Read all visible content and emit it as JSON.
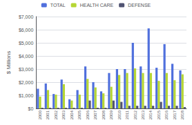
{
  "chart_data": {
    "type": "bar",
    "ylabel": "$ Millions",
    "categories": [
      "2000",
      "2001",
      "2002",
      "2003",
      "2004",
      "2005",
      "2006",
      "2007",
      "2008",
      "2009",
      "2010",
      "2011",
      "2012",
      "2013",
      "2014",
      "2015",
      "2016",
      "2017",
      "2018"
    ],
    "series": [
      {
        "name": "TOTAL",
        "values": [
          1500,
          1900,
          1100,
          2200,
          700,
          1400,
          3200,
          2000,
          1300,
          2700,
          3000,
          3000,
          5000,
          3200,
          6100,
          3100,
          4900,
          3400,
          2900
        ]
      },
      {
        "name": "HEALTH CARE",
        "values": [
          900,
          1400,
          1050,
          1850,
          600,
          1050,
          2250,
          1600,
          1150,
          1650,
          2550,
          2700,
          3050,
          2700,
          2700,
          2100,
          2700,
          2150,
          2600
        ]
      },
      {
        "name": "DEFENSE",
        "values": [
          50,
          50,
          50,
          50,
          50,
          50,
          600,
          50,
          50,
          600,
          500,
          200,
          200,
          200,
          200,
          500,
          200,
          200,
          100
        ]
      }
    ],
    "ylim": [
      0,
      7000
    ],
    "yticks": [
      {
        "value": 0,
        "label": "$0"
      },
      {
        "value": 1000,
        "label": "$1,000"
      },
      {
        "value": 2000,
        "label": "$2,000"
      },
      {
        "value": 3000,
        "label": "$3,000"
      },
      {
        "value": 4000,
        "label": "$4,000"
      },
      {
        "value": 5000,
        "label": "$5,000"
      },
      {
        "value": 6000,
        "label": "$6,000"
      },
      {
        "value": 7000,
        "label": "$7,000"
      }
    ],
    "grid": true,
    "legend": "top"
  }
}
